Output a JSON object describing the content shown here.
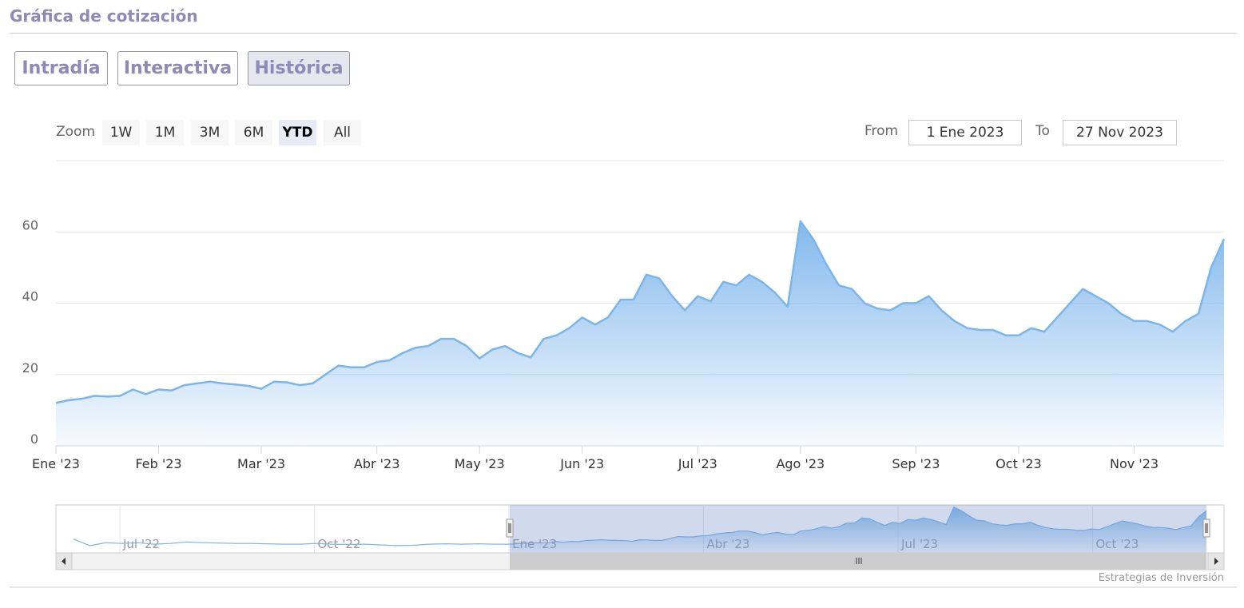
{
  "header": {
    "title": "Gráfica de cotización"
  },
  "tabs": {
    "items": [
      "Intradía",
      "Interactiva",
      "Histórica"
    ],
    "selected": 2
  },
  "range_selector": {
    "zoom_label": "Zoom",
    "buttons": [
      "1W",
      "1M",
      "3M",
      "6M",
      "YTD",
      "All"
    ],
    "selected": 4,
    "from_label": "From",
    "from_value": "1 Ene 2023",
    "to_label": "To",
    "to_value": "27 Nov 2023"
  },
  "chart_data": {
    "type": "area",
    "color": "#7cb5ec",
    "categories": [
      "Ene '23",
      null,
      null,
      null,
      null,
      null,
      null,
      null,
      "Feb '23",
      null,
      null,
      null,
      null,
      null,
      null,
      null,
      "Mar '23",
      null,
      null,
      null,
      null,
      null,
      null,
      null,
      null,
      "Abr '23",
      null,
      null,
      null,
      null,
      null,
      null,
      null,
      "May '23",
      null,
      null,
      null,
      null,
      null,
      null,
      null,
      "Jun '23",
      null,
      null,
      null,
      null,
      null,
      null,
      null,
      null,
      "Jul '23",
      null,
      null,
      null,
      null,
      null,
      null,
      null,
      "Ago '23",
      null,
      null,
      null,
      null,
      null,
      null,
      null,
      null,
      "Sep '23",
      null,
      null,
      null,
      null,
      null,
      null,
      null,
      "Oct '23",
      null,
      null,
      null,
      null,
      null,
      null,
      null,
      null,
      "Nov '23",
      null,
      null,
      null,
      null,
      null,
      null,
      null
    ],
    "values": [
      12,
      12.8,
      13.2,
      14,
      13.8,
      14,
      15.8,
      14.5,
      15.8,
      15.5,
      17,
      17.5,
      18,
      17.5,
      17.2,
      16.8,
      16,
      18,
      17.8,
      17,
      17.5,
      20,
      22.5,
      22,
      22,
      23.5,
      24,
      26,
      27.5,
      28,
      30,
      30,
      28,
      24.5,
      27,
      28,
      26,
      24.8,
      30,
      31,
      33,
      36,
      34,
      36,
      41,
      41,
      48,
      47,
      42,
      38,
      42,
      40.5,
      46,
      45,
      48,
      46,
      43,
      39,
      63,
      58,
      51,
      45,
      44,
      40,
      38.5,
      38,
      40,
      40,
      42,
      38,
      35,
      33,
      32.5,
      32.5,
      31,
      31,
      33,
      32,
      36,
      40,
      44,
      42,
      40,
      37,
      35,
      35,
      34,
      32,
      35,
      37,
      50,
      58
    ],
    "ylim": [
      0,
      80
    ],
    "yticks": [
      0,
      20,
      40,
      60
    ],
    "grid": true
  },
  "navigator": {
    "labels": [
      "Jul '22",
      "Oct '22",
      "Ene '23",
      "Abr '23",
      "Jul '23",
      "Oct '23"
    ],
    "values": [
      19,
      10,
      14,
      13,
      14,
      12,
      13,
      15,
      14,
      13.5,
      13,
      13,
      12.5,
      12,
      12,
      13,
      12,
      11.5,
      12,
      11,
      10,
      10.5,
      12,
      12.5,
      12,
      12.5,
      12,
      12
    ],
    "ylim": [
      0,
      66
    ]
  },
  "credit": "Estrategias de Inversión"
}
